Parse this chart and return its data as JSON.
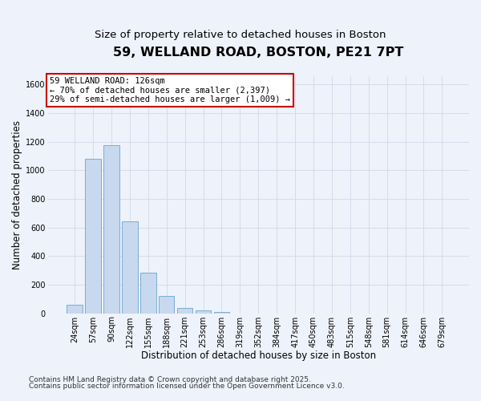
{
  "title": "59, WELLAND ROAD, BOSTON, PE21 7PT",
  "subtitle": "Size of property relative to detached houses in Boston",
  "xlabel": "Distribution of detached houses by size in Boston",
  "ylabel": "Number of detached properties",
  "bar_color": "#c8d8ee",
  "bar_edge_color": "#7aadd4",
  "annotation_box_text": "59 WELLAND ROAD: 126sqm\n← 70% of detached houses are smaller (2,397)\n29% of semi-detached houses are larger (1,009) →",
  "annotation_box_color": "#ffffff",
  "annotation_box_edge_color": "#cc0000",
  "footnote1": "Contains HM Land Registry data © Crown copyright and database right 2025.",
  "footnote2": "Contains public sector information licensed under the Open Government Licence v3.0.",
  "categories": [
    "24sqm",
    "57sqm",
    "90sqm",
    "122sqm",
    "155sqm",
    "188sqm",
    "221sqm",
    "253sqm",
    "286sqm",
    "319sqm",
    "352sqm",
    "384sqm",
    "417sqm",
    "450sqm",
    "483sqm",
    "515sqm",
    "548sqm",
    "581sqm",
    "614sqm",
    "646sqm",
    "679sqm"
  ],
  "values": [
    62,
    1080,
    1175,
    640,
    285,
    122,
    40,
    20,
    8,
    0,
    0,
    0,
    0,
    0,
    0,
    0,
    0,
    0,
    0,
    0,
    0
  ],
  "ylim": [
    0,
    1660
  ],
  "yticks": [
    0,
    200,
    400,
    600,
    800,
    1000,
    1200,
    1400,
    1600
  ],
  "background_color": "#eef2fa",
  "plot_background_color": "#eef2fa",
  "title_fontsize": 11.5,
  "subtitle_fontsize": 9.5,
  "axis_label_fontsize": 8.5,
  "tick_fontsize": 7,
  "annotation_fontsize": 7.5,
  "footnote_fontsize": 6.5
}
